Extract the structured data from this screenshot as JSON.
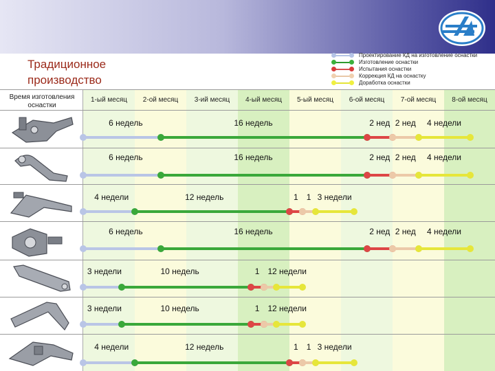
{
  "title_lines": [
    "Традиционное",
    "производство"
  ],
  "time_header": "Время изготовления оснастки",
  "months": [
    "1-ый месяц",
    "2-ой месяц",
    "3-ий месяц",
    "4-ый месяц",
    "5-ый месяц",
    "6-ой месяц",
    "7-ой месяц",
    "8-ой месяц"
  ],
  "legend": [
    {
      "label": "Проектирование КД на изготовление оснастки",
      "color": "#b4c3e6",
      "dot": "#b4c3e6"
    },
    {
      "label": "Изготовление оснастки",
      "color": "#2f9a2f",
      "dot": "#3cb03c"
    },
    {
      "label": "Испытания оснастки",
      "color": "#d85050",
      "dot": "#d83c3c"
    },
    {
      "label": "Коррекция КД на оснастку",
      "color": "#e8c8a8",
      "dot": "#f0d0b0"
    },
    {
      "label": "Доработка оснастки",
      "color": "#e4e438",
      "dot": "#f0f040"
    }
  ],
  "colors": {
    "design": "#b9c5e6",
    "manufacture": "#3aa83a",
    "test": "#dd4646",
    "correction": "#ecc9a8",
    "rework": "#e6e63a",
    "col_light_green": "#eef8df",
    "col_yellow": "#fbfbdc",
    "col_green": "#d8f0c0"
  },
  "rows": [
    {
      "part_icon": "fixture-bracket-icon",
      "labels": [
        "6 недель",
        "16 недель",
        "2 нед",
        "2 нед",
        "4 недели"
      ],
      "segments": [
        {
          "kind": "design",
          "from": 0,
          "to": 1.5
        },
        {
          "kind": "manufacture",
          "from": 1.5,
          "to": 5.5
        },
        {
          "kind": "test",
          "from": 5.5,
          "to": 6.0
        },
        {
          "kind": "correction",
          "from": 6.0,
          "to": 6.5
        },
        {
          "kind": "rework",
          "from": 6.5,
          "to": 7.5
        }
      ]
    },
    {
      "part_icon": "fixture-arm-icon",
      "labels": [
        "6 недель",
        "16 недель",
        "2 нед",
        "2 нед",
        "4 недели"
      ],
      "segments": [
        {
          "kind": "design",
          "from": 0,
          "to": 1.5
        },
        {
          "kind": "manufacture",
          "from": 1.5,
          "to": 5.5
        },
        {
          "kind": "test",
          "from": 5.5,
          "to": 6.0
        },
        {
          "kind": "correction",
          "from": 6.0,
          "to": 6.5
        },
        {
          "kind": "rework",
          "from": 6.5,
          "to": 7.5
        }
      ]
    },
    {
      "part_icon": "fixture-lever-icon",
      "labels": [
        "4 недели",
        "12 недель",
        "1",
        "1",
        "3 недели"
      ],
      "segments": [
        {
          "kind": "design",
          "from": 0,
          "to": 1.0
        },
        {
          "kind": "manufacture",
          "from": 1.0,
          "to": 4.0
        },
        {
          "kind": "test",
          "from": 4.0,
          "to": 4.25
        },
        {
          "kind": "correction",
          "from": 4.25,
          "to": 4.5
        },
        {
          "kind": "rework",
          "from": 4.5,
          "to": 5.25
        }
      ]
    },
    {
      "part_icon": "fixture-housing-icon",
      "labels": [
        "6 недель",
        "16 недель",
        "2 нед",
        "2 нед",
        "4 недели"
      ],
      "segments": [
        {
          "kind": "design",
          "from": 0,
          "to": 1.5
        },
        {
          "kind": "manufacture",
          "from": 1.5,
          "to": 5.5
        },
        {
          "kind": "test",
          "from": 5.5,
          "to": 6.0
        },
        {
          "kind": "correction",
          "from": 6.0,
          "to": 6.5
        },
        {
          "kind": "rework",
          "from": 6.5,
          "to": 7.5
        }
      ]
    },
    {
      "part_icon": "fixture-link-icon",
      "labels": [
        "3 недели",
        "10 недель",
        "1",
        "1",
        "2 недели"
      ],
      "segments": [
        {
          "kind": "design",
          "from": 0,
          "to": 0.75
        },
        {
          "kind": "manufacture",
          "from": 0.75,
          "to": 3.25
        },
        {
          "kind": "test",
          "from": 3.25,
          "to": 3.5
        },
        {
          "kind": "correction",
          "from": 3.5,
          "to": 3.75
        },
        {
          "kind": "rework",
          "from": 3.75,
          "to": 4.25
        }
      ]
    },
    {
      "part_icon": "fixture-beam-icon",
      "labels": [
        "3 недели",
        "10 недель",
        "1",
        "1",
        "2 недели"
      ],
      "segments": [
        {
          "kind": "design",
          "from": 0,
          "to": 0.75
        },
        {
          "kind": "manufacture",
          "from": 0.75,
          "to": 3.25
        },
        {
          "kind": "test",
          "from": 3.25,
          "to": 3.5
        },
        {
          "kind": "correction",
          "from": 3.5,
          "to": 3.75
        },
        {
          "kind": "rework",
          "from": 3.75,
          "to": 4.25
        }
      ]
    },
    {
      "part_icon": "fixture-frame-icon",
      "labels": [
        "4 недели",
        "12 недель",
        "1",
        "1",
        "3 недели"
      ],
      "segments": [
        {
          "kind": "design",
          "from": 0,
          "to": 1.0
        },
        {
          "kind": "manufacture",
          "from": 1.0,
          "to": 4.0
        },
        {
          "kind": "test",
          "from": 4.0,
          "to": 4.25
        },
        {
          "kind": "correction",
          "from": 4.25,
          "to": 4.5
        },
        {
          "kind": "rework",
          "from": 4.5,
          "to": 5.25
        }
      ]
    }
  ]
}
